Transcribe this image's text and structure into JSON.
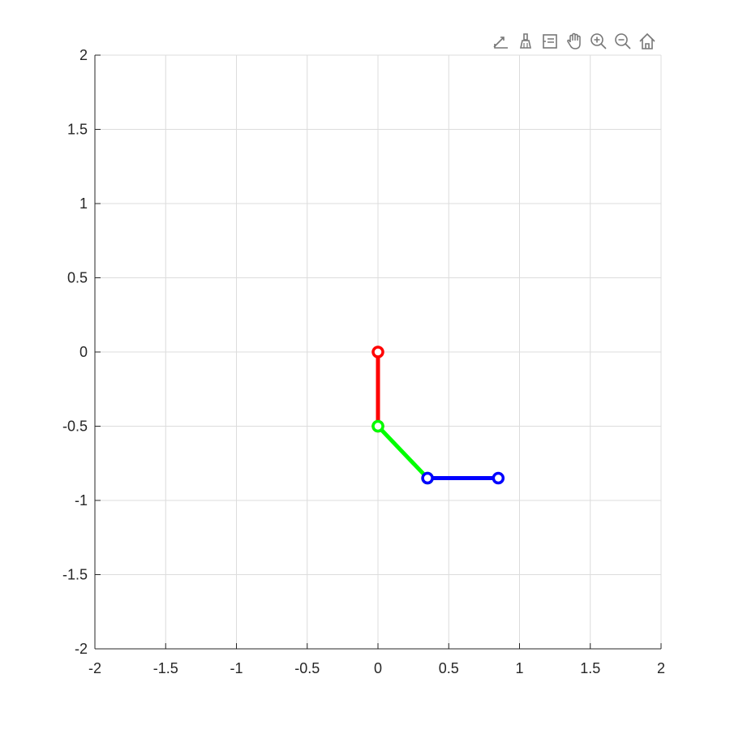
{
  "toolbar": {
    "buttons": [
      {
        "name": "export-icon"
      },
      {
        "name": "brush-icon"
      },
      {
        "name": "datatip-icon"
      },
      {
        "name": "pan-icon"
      },
      {
        "name": "zoom-in-icon"
      },
      {
        "name": "zoom-out-icon"
      },
      {
        "name": "home-icon"
      }
    ]
  },
  "colors": {
    "grid": "#dcdcdc",
    "axis": "#262626",
    "link1": "#ff0000",
    "link2": "#00ff00",
    "link3": "#0000ff"
  },
  "chart_data": {
    "type": "line",
    "title": "",
    "xlabel": "",
    "ylabel": "",
    "xlim": [
      -2,
      2
    ],
    "ylim": [
      -2,
      2
    ],
    "grid": true,
    "x_ticks": [
      "-2",
      "-1.5",
      "-1",
      "-0.5",
      "0",
      "0.5",
      "1",
      "1.5",
      "2"
    ],
    "y_ticks": [
      "2",
      "1.5",
      "1",
      "0.5",
      "0",
      "-0.5",
      "-1",
      "-1.5",
      "-2"
    ],
    "series": [
      {
        "color": "#ff0000",
        "x": [
          0,
          0
        ],
        "y": [
          0,
          -0.5
        ]
      },
      {
        "color": "#00ff00",
        "x": [
          0,
          0.35
        ],
        "y": [
          -0.5,
          -0.85
        ]
      },
      {
        "color": "#0000ff",
        "x": [
          0.35,
          0.85
        ],
        "y": [
          -0.85,
          -0.85
        ]
      }
    ]
  }
}
